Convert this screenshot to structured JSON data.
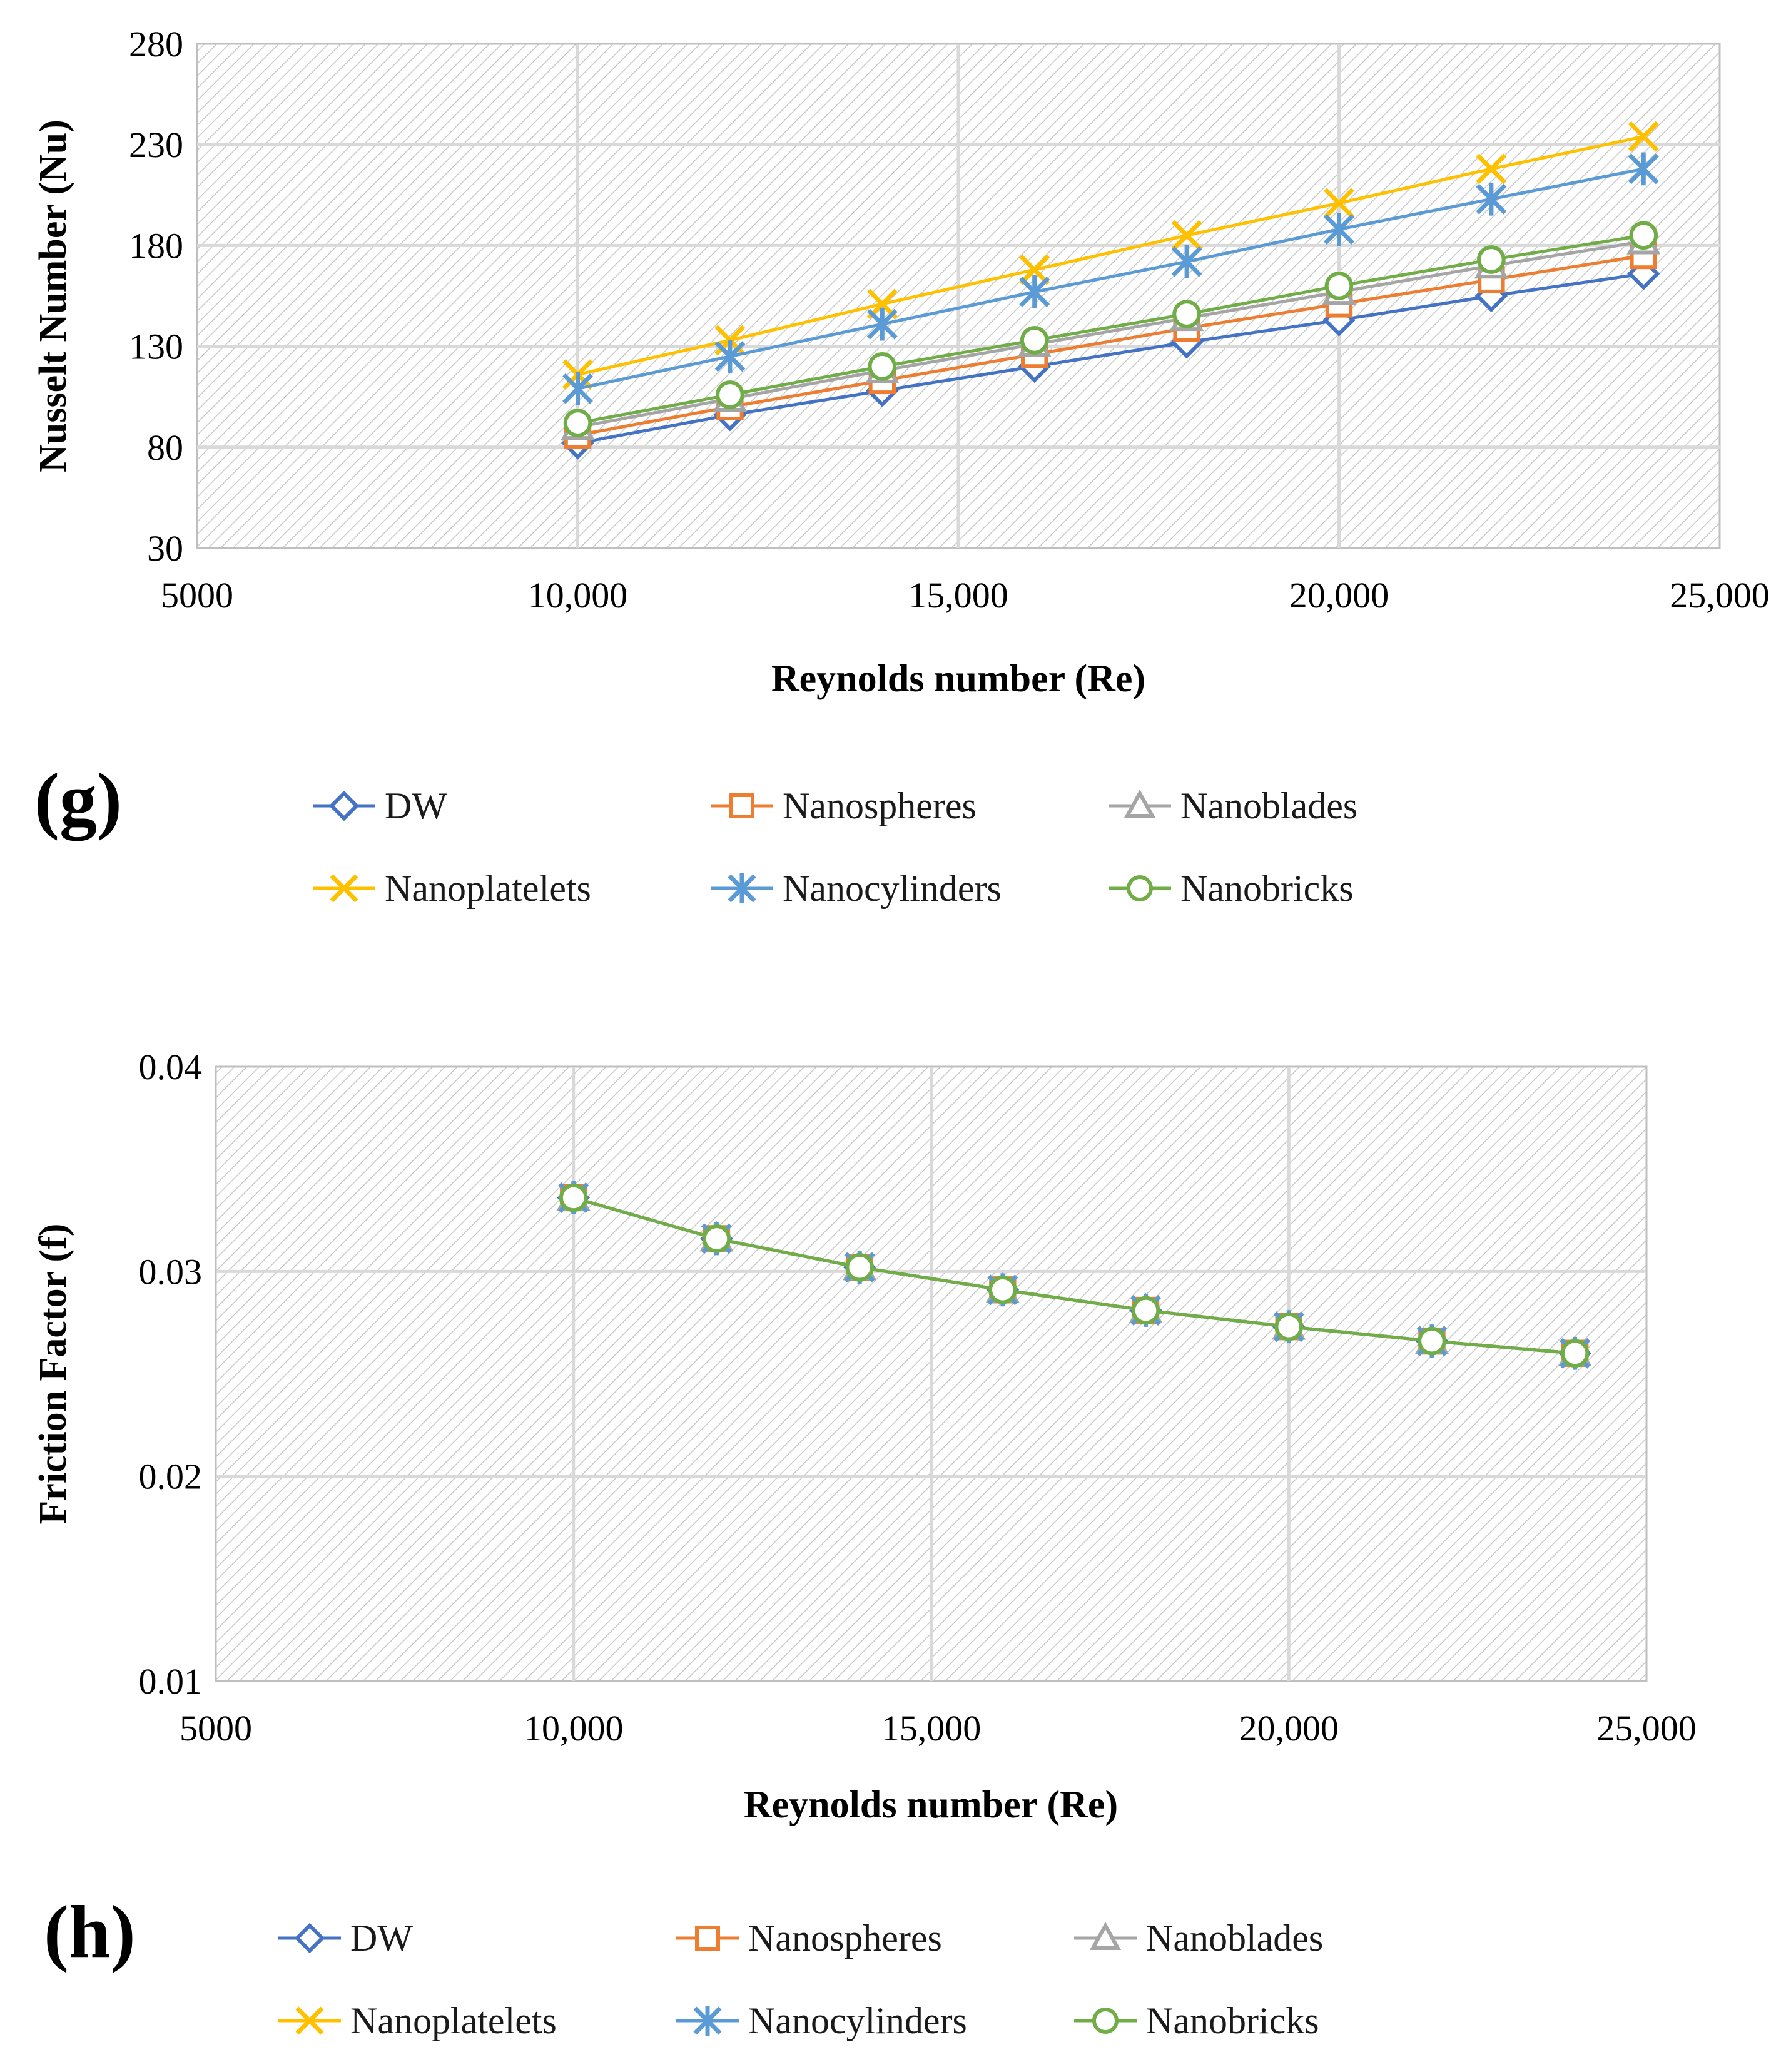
{
  "colors": {
    "DW": "#4472C4",
    "Nanospheres": "#ED7D31",
    "Nanoblades": "#A5A5A5",
    "Nanoplatelets": "#FFC000",
    "Nanocylinders": "#5B9BD5",
    "Nanobricks": "#70AD47"
  },
  "chart_data": [
    {
      "type": "line",
      "panel_label": "(g)",
      "title": "",
      "xlabel": "Reynolds number (Re)",
      "ylabel": "Nusselt Number (Nu)",
      "xlim": [
        5000,
        25000
      ],
      "ylim": [
        30,
        280
      ],
      "x_tick_labels": [
        "5000",
        "10,000",
        "15,000",
        "20,000",
        "25,000"
      ],
      "y_tick_labels": [
        "30",
        "80",
        "130",
        "180",
        "230",
        "280"
      ],
      "x": [
        10000,
        12000,
        14000,
        16000,
        18000,
        20000,
        22000,
        24000
      ],
      "series": [
        {
          "name": "DW",
          "marker": "diamond",
          "values": [
            82,
            96,
            108,
            120,
            132,
            143,
            155,
            166
          ]
        },
        {
          "name": "Nanospheres",
          "marker": "square",
          "values": [
            86,
            100,
            113,
            126,
            139,
            151,
            163,
            175
          ]
        },
        {
          "name": "Nanoblades",
          "marker": "triangle",
          "values": [
            90,
            104,
            118,
            131,
            144,
            157,
            170,
            182
          ]
        },
        {
          "name": "Nanoplatelets",
          "marker": "x",
          "values": [
            116,
            133,
            151,
            168,
            185,
            201,
            218,
            234
          ]
        },
        {
          "name": "Nanocylinders",
          "marker": "asterisk",
          "values": [
            109,
            125,
            141,
            157,
            172,
            188,
            203,
            218
          ]
        },
        {
          "name": "Nanobricks",
          "marker": "circle",
          "values": [
            92,
            106,
            120,
            133,
            146,
            160,
            173,
            185
          ]
        }
      ],
      "legend_position": "bottom"
    },
    {
      "type": "line",
      "panel_label": "(h)",
      "title": "",
      "xlabel": "Reynolds number (Re)",
      "ylabel": "Friction Factor (f)",
      "xlim": [
        5000,
        25000
      ],
      "ylim": [
        0.01,
        0.04
      ],
      "x_tick_labels": [
        "5000",
        "10,000",
        "15,000",
        "20,000",
        "25,000"
      ],
      "y_tick_labels": [
        "0.01",
        "0.02",
        "0.03",
        "0.04"
      ],
      "x": [
        10000,
        12000,
        14000,
        16000,
        18000,
        20000,
        22000,
        24000
      ],
      "series": [
        {
          "name": "DW",
          "marker": "diamond",
          "values": [
            0.0336,
            0.0316,
            0.0302,
            0.0291,
            0.0281,
            0.0273,
            0.0266,
            0.026
          ]
        },
        {
          "name": "Nanospheres",
          "marker": "square",
          "values": [
            0.0336,
            0.0316,
            0.0302,
            0.0291,
            0.0281,
            0.0273,
            0.0266,
            0.026
          ]
        },
        {
          "name": "Nanoblades",
          "marker": "triangle",
          "values": [
            0.0336,
            0.0316,
            0.0302,
            0.0291,
            0.0281,
            0.0273,
            0.0266,
            0.026
          ]
        },
        {
          "name": "Nanoplatelets",
          "marker": "x",
          "values": [
            0.0336,
            0.0316,
            0.0302,
            0.0291,
            0.0281,
            0.0273,
            0.0266,
            0.026
          ]
        },
        {
          "name": "Nanocylinders",
          "marker": "asterisk",
          "values": [
            0.0336,
            0.0316,
            0.0302,
            0.0291,
            0.0281,
            0.0273,
            0.0266,
            0.026
          ]
        },
        {
          "name": "Nanobricks",
          "marker": "circle",
          "values": [
            0.0336,
            0.0316,
            0.0302,
            0.0291,
            0.0281,
            0.0273,
            0.0266,
            0.026
          ]
        }
      ],
      "legend_position": "bottom"
    }
  ]
}
